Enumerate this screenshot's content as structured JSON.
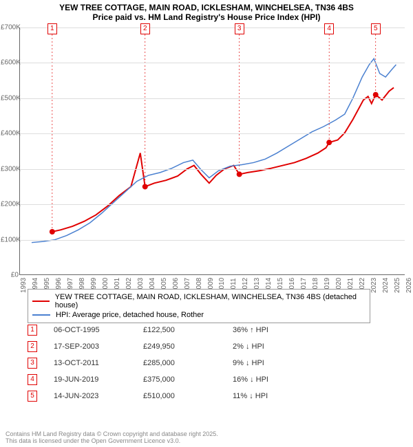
{
  "title": {
    "line1": "YEW TREE COTTAGE, MAIN ROAD, ICKLESHAM, WINCHELSEA, TN36 4BS",
    "line2": "Price paid vs. HM Land Registry's House Price Index (HPI)"
  },
  "chart": {
    "type": "line",
    "background_color": "#ffffff",
    "grid_color": "#dddddd",
    "axis_color": "#666666",
    "y": {
      "min": 0,
      "max": 700000,
      "step": 100000,
      "labels": [
        "£0",
        "£100K",
        "£200K",
        "£300K",
        "£400K",
        "£500K",
        "£600K",
        "£700K"
      ]
    },
    "x": {
      "min": 1993,
      "max": 2026,
      "step": 1,
      "labels": [
        "1993",
        "1994",
        "1995",
        "1996",
        "1997",
        "1998",
        "1999",
        "2000",
        "2001",
        "2002",
        "2003",
        "2004",
        "2005",
        "2006",
        "2007",
        "2008",
        "2009",
        "2010",
        "2011",
        "2012",
        "2013",
        "2014",
        "2015",
        "2016",
        "2017",
        "2018",
        "2019",
        "2020",
        "2021",
        "2022",
        "2023",
        "2024",
        "2025",
        "2026"
      ]
    },
    "series": [
      {
        "id": "property",
        "color": "#e00000",
        "width": 2,
        "points": [
          [
            1995.76,
            122500
          ],
          [
            1996.5,
            128000
          ],
          [
            1997.5,
            138000
          ],
          [
            1998.5,
            152000
          ],
          [
            1999.5,
            170000
          ],
          [
            2000.5,
            195000
          ],
          [
            2001.5,
            225000
          ],
          [
            2002.5,
            250000
          ],
          [
            2003.3,
            345000
          ],
          [
            2003.71,
            249950
          ],
          [
            2004.5,
            260000
          ],
          [
            2005.5,
            268000
          ],
          [
            2006.5,
            280000
          ],
          [
            2007.3,
            300000
          ],
          [
            2007.9,
            310000
          ],
          [
            2008.5,
            285000
          ],
          [
            2009.2,
            260000
          ],
          [
            2009.8,
            282000
          ],
          [
            2010.5,
            300000
          ],
          [
            2011.3,
            310000
          ],
          [
            2011.78,
            285000
          ],
          [
            2012.5,
            290000
          ],
          [
            2013.5,
            295000
          ],
          [
            2014.5,
            302000
          ],
          [
            2015.5,
            310000
          ],
          [
            2016.5,
            318000
          ],
          [
            2017.5,
            330000
          ],
          [
            2018.5,
            345000
          ],
          [
            2019.2,
            360000
          ],
          [
            2019.47,
            375000
          ],
          [
            2020.2,
            382000
          ],
          [
            2020.8,
            402000
          ],
          [
            2021.5,
            440000
          ],
          [
            2022.4,
            495000
          ],
          [
            2022.8,
            505000
          ],
          [
            2023.1,
            485000
          ],
          [
            2023.45,
            510000
          ],
          [
            2024.0,
            495000
          ],
          [
            2024.6,
            520000
          ],
          [
            2025.0,
            530000
          ]
        ]
      },
      {
        "id": "hpi",
        "color": "#4a80d0",
        "width": 1.5,
        "points": [
          [
            1994.0,
            92000
          ],
          [
            1995.0,
            95000
          ],
          [
            1996.0,
            100000
          ],
          [
            1997.0,
            112000
          ],
          [
            1998.0,
            128000
          ],
          [
            1999.0,
            148000
          ],
          [
            2000.0,
            175000
          ],
          [
            2001.0,
            205000
          ],
          [
            2002.0,
            235000
          ],
          [
            2003.0,
            265000
          ],
          [
            2004.0,
            282000
          ],
          [
            2005.0,
            290000
          ],
          [
            2006.0,
            302000
          ],
          [
            2007.0,
            318000
          ],
          [
            2007.8,
            325000
          ],
          [
            2008.5,
            298000
          ],
          [
            2009.2,
            275000
          ],
          [
            2010.0,
            295000
          ],
          [
            2011.0,
            308000
          ],
          [
            2012.0,
            312000
          ],
          [
            2013.0,
            318000
          ],
          [
            2014.0,
            328000
          ],
          [
            2015.0,
            345000
          ],
          [
            2016.0,
            365000
          ],
          [
            2017.0,
            385000
          ],
          [
            2018.0,
            405000
          ],
          [
            2019.0,
            420000
          ],
          [
            2020.0,
            438000
          ],
          [
            2020.8,
            455000
          ],
          [
            2021.5,
            500000
          ],
          [
            2022.3,
            560000
          ],
          [
            2022.9,
            595000
          ],
          [
            2023.3,
            612000
          ],
          [
            2023.8,
            570000
          ],
          [
            2024.3,
            560000
          ],
          [
            2024.8,
            580000
          ],
          [
            2025.2,
            595000
          ]
        ]
      }
    ],
    "sale_markers": [
      {
        "n": "1",
        "year": 1995.76,
        "price": 122500
      },
      {
        "n": "2",
        "year": 2003.71,
        "price": 249950
      },
      {
        "n": "3",
        "year": 2011.78,
        "price": 285000
      },
      {
        "n": "4",
        "year": 2019.47,
        "price": 375000
      },
      {
        "n": "5",
        "year": 2023.45,
        "price": 510000
      }
    ]
  },
  "legend": {
    "items": [
      {
        "color": "#e00000",
        "label": "YEW TREE COTTAGE, MAIN ROAD, ICKLESHAM, WINCHELSEA, TN36 4BS (detached house)"
      },
      {
        "color": "#4a80d0",
        "label": "HPI: Average price, detached house, Rother"
      }
    ]
  },
  "table": {
    "rows": [
      {
        "n": "1",
        "date": "06-OCT-1995",
        "price": "£122,500",
        "pct": "36%",
        "dir": "up",
        "rel": "HPI"
      },
      {
        "n": "2",
        "date": "17-SEP-2003",
        "price": "£249,950",
        "pct": "2%",
        "dir": "down",
        "rel": "HPI"
      },
      {
        "n": "3",
        "date": "13-OCT-2011",
        "price": "£285,000",
        "pct": "9%",
        "dir": "down",
        "rel": "HPI"
      },
      {
        "n": "4",
        "date": "19-JUN-2019",
        "price": "£375,000",
        "pct": "16%",
        "dir": "down",
        "rel": "HPI"
      },
      {
        "n": "5",
        "date": "14-JUN-2023",
        "price": "£510,000",
        "pct": "11%",
        "dir": "down",
        "rel": "HPI"
      }
    ]
  },
  "footer": {
    "line1": "Contains HM Land Registry data © Crown copyright and database right 2025.",
    "line2": "This data is licensed under the Open Government Licence v3.0."
  }
}
